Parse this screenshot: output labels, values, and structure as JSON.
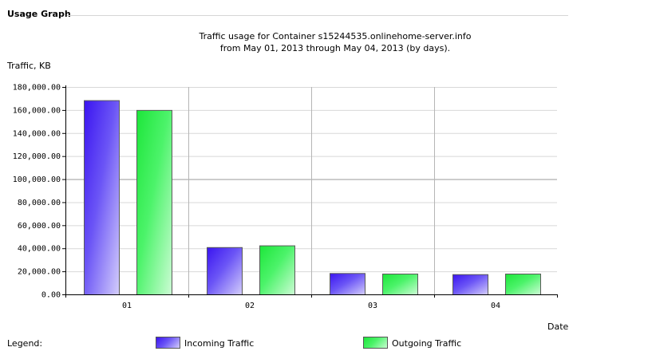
{
  "section": {
    "title": "Usage Graph"
  },
  "chart_data": {
    "type": "bar",
    "title_lines": [
      "Traffic usage for Container s15244535.onlinehome-server.info",
      "from May 01, 2013 through May 04, 2013 (by days)."
    ],
    "ylabel": "Traffic, KB",
    "xlabel": "Date",
    "categories": [
      "01",
      "02",
      "03",
      "04"
    ],
    "series": [
      {
        "name": "Incoming Traffic",
        "values": [
          168500,
          41000,
          18500,
          17500
        ],
        "color": "#3a14f0"
      },
      {
        "name": "Outgoing Traffic",
        "values": [
          160000,
          42500,
          18000,
          18000
        ],
        "color": "#1de63a"
      }
    ],
    "ylim": [
      0,
      180000
    ],
    "yticks": [
      0,
      20000,
      40000,
      60000,
      80000,
      100000,
      120000,
      140000,
      160000,
      180000
    ],
    "ytick_labels": [
      "0.00",
      "20,000.00",
      "40,000.00",
      "60,000.00",
      "80,000.00",
      "100,000.00",
      "120,000.00",
      "140,000.00",
      "160,000.00",
      "180,000.00"
    ],
    "grid": true,
    "legend_position": "bottom"
  },
  "legend": {
    "label": "Legend:"
  }
}
